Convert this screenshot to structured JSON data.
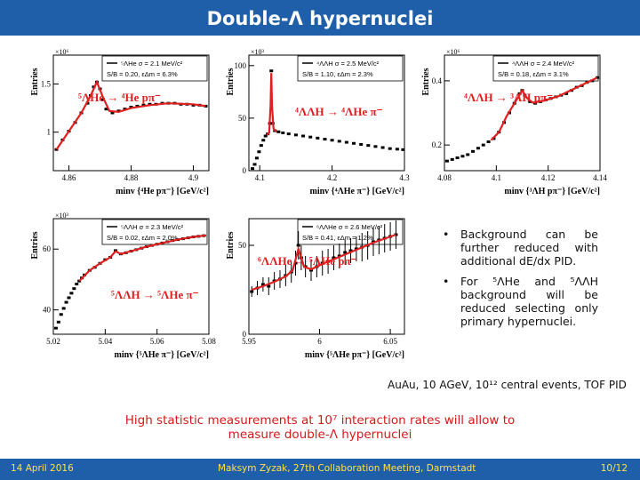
{
  "slide": {
    "title": "Double-Λ hypernuclei",
    "bullets": [
      "Background can be further reduced with additional dE/dx PID.",
      "For ⁵ΛHe and ⁵ΛΛH background will be reduced selecting only primary hypernuclei."
    ],
    "caption": "AuAu, 10 AGeV, 10¹² central events, TOF PID",
    "highlight_line1": "High statistic measurements at 10⁷ interaction rates will allow to",
    "highlight_line2": "measure double-Λ hypernuclei",
    "footer": {
      "date": "14 April 2016",
      "center": "Maksym Zyzak, 27th Collaboration Meeting, Darmstadt",
      "page": "10/12"
    }
  },
  "colors": {
    "title_bar": "#1f5ea8",
    "fit_line": "#e02020",
    "data_points": "#000000",
    "reaction_text": "#e02020",
    "highlight_text": "#d21a1a",
    "footer_text": "#ffe14a"
  },
  "chart_data": [
    {
      "type": "scatter",
      "ylabel": "Entries",
      "xlabel": "minv {⁴He pπ⁻} [GeV/c²]",
      "y_multiplier": "×10⁶",
      "xlim": [
        4.855,
        4.905
      ],
      "ylim": [
        0.6,
        1.8
      ],
      "x_ticks": [
        "4.86",
        "4.88",
        "4.9"
      ],
      "y_ticks": [
        "1",
        "1.5"
      ],
      "legend_line1": "⁵ΛHe σ = 2.1 MeV/c²",
      "legend_line2": "S/B = 0.20, εΔm = 6.3%",
      "reaction": "⁵ΛHe → ⁴He pπ⁻",
      "points": [
        [
          4.856,
          0.82
        ],
        [
          4.858,
          0.92
        ],
        [
          4.86,
          1.01
        ],
        [
          4.862,
          1.1
        ],
        [
          4.864,
          1.2
        ],
        [
          4.866,
          1.3
        ],
        [
          4.867,
          1.38
        ],
        [
          4.868,
          1.47
        ],
        [
          4.869,
          1.52
        ],
        [
          4.87,
          1.45
        ],
        [
          4.871,
          1.34
        ],
        [
          4.872,
          1.24
        ],
        [
          4.874,
          1.2
        ],
        [
          4.876,
          1.22
        ],
        [
          4.878,
          1.24
        ],
        [
          4.88,
          1.26
        ],
        [
          4.882,
          1.27
        ],
        [
          4.884,
          1.28
        ],
        [
          4.886,
          1.29
        ],
        [
          4.888,
          1.29
        ],
        [
          4.89,
          1.3
        ],
        [
          4.892,
          1.3
        ],
        [
          4.894,
          1.3
        ],
        [
          4.896,
          1.29
        ],
        [
          4.898,
          1.29
        ],
        [
          4.9,
          1.28
        ],
        [
          4.902,
          1.28
        ],
        [
          4.904,
          1.27
        ]
      ],
      "fit": [
        [
          4.856,
          0.82
        ],
        [
          4.86,
          1.01
        ],
        [
          4.864,
          1.2
        ],
        [
          4.867,
          1.38
        ],
        [
          4.869,
          1.52
        ],
        [
          4.871,
          1.36
        ],
        [
          4.873,
          1.22
        ],
        [
          4.876,
          1.21
        ],
        [
          4.88,
          1.25
        ],
        [
          4.886,
          1.28
        ],
        [
          4.892,
          1.3
        ],
        [
          4.9,
          1.29
        ],
        [
          4.904,
          1.27
        ]
      ]
    },
    {
      "type": "scatter",
      "ylabel": "Entries",
      "xlabel": "minv {⁴ΛHe π⁻} [GeV/c²]",
      "y_multiplier": "×10³",
      "xlim": [
        4.085,
        4.3
      ],
      "ylim": [
        0,
        110
      ],
      "x_ticks": [
        "4.1",
        "4.2",
        "4.3"
      ],
      "y_ticks": [
        "0",
        "50",
        "100"
      ],
      "legend_line1": "⁴ΛΛH σ = 2.5 MeV/c²",
      "legend_line2": "S/B = 1.10, εΔm = 2.3%",
      "reaction": "⁴ΛΛH → ⁴ΛHe π⁻",
      "points": [
        [
          4.09,
          2
        ],
        [
          4.093,
          6
        ],
        [
          4.096,
          12
        ],
        [
          4.099,
          18
        ],
        [
          4.102,
          24
        ],
        [
          4.105,
          29
        ],
        [
          4.108,
          33
        ],
        [
          4.111,
          35
        ],
        [
          4.114,
          45
        ],
        [
          4.116,
          95
        ],
        [
          4.118,
          45
        ],
        [
          4.121,
          38
        ],
        [
          4.126,
          37
        ],
        [
          4.132,
          36
        ],
        [
          4.14,
          35
        ],
        [
          4.15,
          34
        ],
        [
          4.16,
          33
        ],
        [
          4.17,
          32
        ],
        [
          4.18,
          31
        ],
        [
          4.19,
          30
        ],
        [
          4.2,
          29
        ],
        [
          4.21,
          28
        ],
        [
          4.22,
          27
        ],
        [
          4.23,
          26
        ],
        [
          4.24,
          25
        ],
        [
          4.25,
          24
        ],
        [
          4.26,
          23
        ],
        [
          4.27,
          22
        ],
        [
          4.28,
          21
        ],
        [
          4.29,
          20.5
        ],
        [
          4.298,
          20
        ]
      ],
      "fit": [
        [
          4.11,
          34
        ],
        [
          4.113,
          36
        ],
        [
          4.115,
          62
        ],
        [
          4.116,
          93
        ],
        [
          4.117,
          62
        ],
        [
          4.119,
          40
        ],
        [
          4.123,
          37
        ]
      ]
    },
    {
      "type": "scatter",
      "ylabel": "Entries",
      "xlabel": "minv {³ΛH pπ⁻} [GeV/c²]",
      "y_multiplier": "×10⁶",
      "xlim": [
        4.08,
        4.14
      ],
      "ylim": [
        0.12,
        0.48
      ],
      "x_ticks": [
        "4.08",
        "4.1",
        "4.12",
        "4.14"
      ],
      "y_ticks": [
        "0.2",
        "0.4"
      ],
      "legend_line1": "⁴ΛΛH σ = 2.4 MeV/c²",
      "legend_line2": "S/B = 0.18, εΔm = 3.1%",
      "reaction": "⁴ΛΛH → ³ΛH pπ⁻",
      "points": [
        [
          4.081,
          0.15
        ],
        [
          4.083,
          0.155
        ],
        [
          4.085,
          0.16
        ],
        [
          4.087,
          0.165
        ],
        [
          4.089,
          0.17
        ],
        [
          4.091,
          0.18
        ],
        [
          4.093,
          0.19
        ],
        [
          4.095,
          0.2
        ],
        [
          4.097,
          0.21
        ],
        [
          4.099,
          0.22
        ],
        [
          4.101,
          0.24
        ],
        [
          4.103,
          0.27
        ],
        [
          4.105,
          0.3
        ],
        [
          4.107,
          0.33
        ],
        [
          4.109,
          0.36
        ],
        [
          4.11,
          0.37
        ],
        [
          4.111,
          0.355
        ],
        [
          4.113,
          0.335
        ],
        [
          4.115,
          0.33
        ],
        [
          4.117,
          0.335
        ],
        [
          4.119,
          0.34
        ],
        [
          4.121,
          0.345
        ],
        [
          4.123,
          0.35
        ],
        [
          4.125,
          0.355
        ],
        [
          4.127,
          0.36
        ],
        [
          4.129,
          0.37
        ],
        [
          4.131,
          0.38
        ],
        [
          4.133,
          0.385
        ],
        [
          4.135,
          0.395
        ],
        [
          4.137,
          0.4
        ],
        [
          4.139,
          0.41
        ]
      ],
      "fit": [
        [
          4.098,
          0.215
        ],
        [
          4.101,
          0.24
        ],
        [
          4.104,
          0.29
        ],
        [
          4.107,
          0.33
        ],
        [
          4.11,
          0.37
        ],
        [
          4.112,
          0.345
        ],
        [
          4.114,
          0.332
        ],
        [
          4.118,
          0.337
        ],
        [
          4.124,
          0.352
        ],
        [
          4.13,
          0.375
        ],
        [
          4.139,
          0.41
        ]
      ]
    },
    {
      "type": "scatter",
      "ylabel": "Entries",
      "xlabel": "minv {⁵ΛHe π⁻} [GeV/c²]",
      "y_multiplier": "×10³",
      "xlim": [
        5.02,
        5.08
      ],
      "ylim": [
        32,
        70
      ],
      "x_ticks": [
        "5.02",
        "5.04",
        "5.06",
        "5.08"
      ],
      "y_ticks": [
        "40",
        "60"
      ],
      "legend_line1": "⁵ΛΛH σ = 2.3 MeV/c²",
      "legend_line2": "S/B = 0.02, εΔm = 2.0%",
      "reaction": "⁵ΛΛH → ⁵ΛHe π⁻",
      "points": [
        [
          5.021,
          34
        ],
        [
          5.022,
          36
        ],
        [
          5.023,
          38.5
        ],
        [
          5.024,
          40.5
        ],
        [
          5.025,
          42.5
        ],
        [
          5.026,
          44
        ],
        [
          5.027,
          45.5
        ],
        [
          5.028,
          47
        ],
        [
          5.029,
          48.5
        ],
        [
          5.03,
          49.5
        ],
        [
          5.031,
          50.5
        ],
        [
          5.032,
          51.5
        ],
        [
          5.034,
          53
        ],
        [
          5.036,
          54
        ],
        [
          5.038,
          55.3
        ],
        [
          5.04,
          56.5
        ],
        [
          5.042,
          57.3
        ],
        [
          5.044,
          59.5
        ],
        [
          5.046,
          58.4
        ],
        [
          5.048,
          58.8
        ],
        [
          5.05,
          59.3
        ],
        [
          5.052,
          59.8
        ],
        [
          5.054,
          60.3
        ],
        [
          5.056,
          60.8
        ],
        [
          5.058,
          61.2
        ],
        [
          5.06,
          61.6
        ],
        [
          5.062,
          62
        ],
        [
          5.064,
          62.4
        ],
        [
          5.066,
          62.8
        ],
        [
          5.068,
          63.1
        ],
        [
          5.07,
          63.4
        ],
        [
          5.072,
          63.7
        ],
        [
          5.074,
          64
        ],
        [
          5.076,
          64.2
        ],
        [
          5.078,
          64.4
        ]
      ],
      "fit": [
        [
          5.03,
          49.5
        ],
        [
          5.034,
          53
        ],
        [
          5.038,
          55.3
        ],
        [
          5.042,
          57.3
        ],
        [
          5.044,
          59.3
        ],
        [
          5.046,
          58.4
        ],
        [
          5.05,
          59.3
        ],
        [
          5.056,
          60.8
        ],
        [
          5.062,
          62
        ],
        [
          5.068,
          63.1
        ],
        [
          5.074,
          64
        ],
        [
          5.079,
          64.5
        ]
      ]
    },
    {
      "type": "scatter",
      "ylabel": "Entries",
      "xlabel": "minv {⁵ΛHe pπ⁻} [GeV/c²]",
      "xlim": [
        5.95,
        6.06
      ],
      "ylim": [
        0,
        65
      ],
      "x_ticks": [
        "5.95",
        "6",
        "6.05"
      ],
      "y_ticks": [
        "0",
        "50"
      ],
      "legend_line1": "⁶ΛΛHe σ = 2.6 MeV/c²",
      "legend_line2": "S/B = 0.41, εΔm = 1.2%",
      "reaction": "⁶ΛΛHe → ⁵ΛHe pπ⁻",
      "points": [
        [
          5.952,
          24
        ],
        [
          5.956,
          26
        ],
        [
          5.96,
          28
        ],
        [
          5.964,
          27
        ],
        [
          5.968,
          30
        ],
        [
          5.972,
          31
        ],
        [
          5.976,
          33
        ],
        [
          5.98,
          35
        ],
        [
          5.983,
          40
        ],
        [
          5.985,
          50
        ],
        [
          5.987,
          43
        ],
        [
          5.99,
          38
        ],
        [
          5.994,
          36
        ],
        [
          5.998,
          38
        ],
        [
          6.002,
          40
        ],
        [
          6.006,
          41
        ],
        [
          6.01,
          43
        ],
        [
          6.014,
          44
        ],
        [
          6.018,
          46
        ],
        [
          6.022,
          47
        ],
        [
          6.026,
          48
        ],
        [
          6.03,
          49
        ],
        [
          6.034,
          50
        ],
        [
          6.038,
          52
        ],
        [
          6.042,
          53
        ],
        [
          6.046,
          54
        ],
        [
          6.05,
          55
        ],
        [
          6.054,
          56
        ]
      ],
      "errors": [
        3,
        4,
        4,
        5,
        5,
        5,
        6,
        6,
        7,
        8,
        7,
        6,
        6,
        6,
        7,
        7,
        7,
        7,
        7,
        7,
        7,
        8,
        8,
        8,
        8,
        8,
        8,
        8
      ],
      "fit": [
        [
          5.952,
          25
        ],
        [
          5.96,
          27
        ],
        [
          5.968,
          29.5
        ],
        [
          5.976,
          32.5
        ],
        [
          5.981,
          36
        ],
        [
          5.985,
          48
        ],
        [
          5.989,
          38
        ],
        [
          5.994,
          36.5
        ],
        [
          6.002,
          39.5
        ],
        [
          6.014,
          43.5
        ],
        [
          6.026,
          47.5
        ],
        [
          6.038,
          51.5
        ],
        [
          6.054,
          56
        ]
      ]
    }
  ]
}
